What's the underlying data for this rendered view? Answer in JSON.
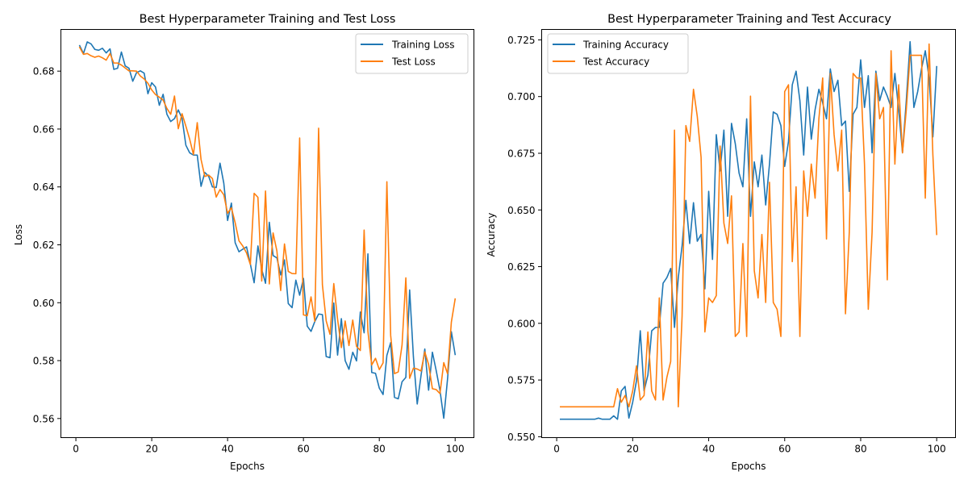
{
  "chart_data": [
    {
      "type": "line",
      "title": "Best Hyperparameter Training and Test Loss",
      "xlabel": "Epochs",
      "ylabel": "Loss",
      "xlim": [
        -3.95,
        104.95
      ],
      "ylim": [
        0.5534,
        0.6944
      ],
      "xticks": [
        0,
        20,
        40,
        60,
        80,
        100
      ],
      "yticks": [
        0.56,
        0.58,
        0.6,
        0.62,
        0.64,
        0.66,
        0.68
      ],
      "ytick_labels": [
        "0.56",
        "0.58",
        "0.60",
        "0.62",
        "0.64",
        "0.66",
        "0.68"
      ],
      "legend_position": "upper-right",
      "x": [
        1,
        2,
        3,
        4,
        5,
        6,
        7,
        8,
        9,
        10,
        11,
        12,
        13,
        14,
        15,
        16,
        17,
        18,
        19,
        20,
        21,
        22,
        23,
        24,
        25,
        26,
        27,
        28,
        29,
        30,
        31,
        32,
        33,
        34,
        35,
        36,
        37,
        38,
        39,
        40,
        41,
        42,
        43,
        44,
        45,
        46,
        47,
        48,
        49,
        50,
        51,
        52,
        53,
        54,
        55,
        56,
        57,
        58,
        59,
        60,
        61,
        62,
        63,
        64,
        65,
        66,
        67,
        68,
        69,
        70,
        71,
        72,
        73,
        74,
        75,
        76,
        77,
        78,
        79,
        80,
        81,
        82,
        83,
        84,
        85,
        86,
        87,
        88,
        89,
        90,
        91,
        92,
        93,
        94,
        95,
        96,
        97,
        98,
        99,
        100
      ],
      "series": [
        {
          "name": "Training Loss",
          "color": "#1f77b4",
          "values": [
            0.6888,
            0.6861,
            0.6901,
            0.6894,
            0.6875,
            0.6872,
            0.6879,
            0.6863,
            0.6877,
            0.6806,
            0.681,
            0.6866,
            0.6818,
            0.681,
            0.6765,
            0.6795,
            0.6801,
            0.6793,
            0.6722,
            0.676,
            0.6745,
            0.6682,
            0.672,
            0.6651,
            0.6626,
            0.6636,
            0.6666,
            0.6637,
            0.6544,
            0.6518,
            0.651,
            0.651,
            0.6402,
            0.645,
            0.6437,
            0.64,
            0.6398,
            0.6482,
            0.6413,
            0.6284,
            0.6344,
            0.6207,
            0.6176,
            0.6185,
            0.6193,
            0.6134,
            0.6069,
            0.6196,
            0.6115,
            0.6067,
            0.6278,
            0.6163,
            0.6155,
            0.6096,
            0.6148,
            0.5997,
            0.5983,
            0.6078,
            0.6026,
            0.6084,
            0.5919,
            0.5901,
            0.5935,
            0.5961,
            0.5959,
            0.5814,
            0.581,
            0.5999,
            0.5819,
            0.5945,
            0.58,
            0.577,
            0.5829,
            0.5799,
            0.5968,
            0.5896,
            0.6169,
            0.5759,
            0.5756,
            0.5705,
            0.5683,
            0.5818,
            0.5862,
            0.5673,
            0.5668,
            0.5727,
            0.5742,
            0.6044,
            0.5812,
            0.565,
            0.5748,
            0.584,
            0.5698,
            0.5829,
            0.5766,
            0.5697,
            0.5601,
            0.5737,
            0.59,
            0.5821
          ]
        },
        {
          "name": "Test Loss",
          "color": "#ff7f0e",
          "values": [
            0.6882,
            0.6858,
            0.6861,
            0.6853,
            0.6848,
            0.6852,
            0.6846,
            0.6838,
            0.6861,
            0.6828,
            0.6828,
            0.6821,
            0.6811,
            0.6801,
            0.6801,
            0.68,
            0.6783,
            0.6773,
            0.6758,
            0.6735,
            0.6719,
            0.671,
            0.67,
            0.6671,
            0.6651,
            0.6714,
            0.6601,
            0.6653,
            0.661,
            0.6565,
            0.6512,
            0.6622,
            0.6495,
            0.6436,
            0.6441,
            0.6429,
            0.6365,
            0.6391,
            0.6373,
            0.6309,
            0.6328,
            0.6276,
            0.6214,
            0.6196,
            0.6172,
            0.6132,
            0.6378,
            0.6364,
            0.6075,
            0.6386,
            0.6065,
            0.6241,
            0.6179,
            0.6042,
            0.6203,
            0.6108,
            0.6101,
            0.61,
            0.6569,
            0.5958,
            0.5955,
            0.602,
            0.5936,
            0.6603,
            0.6062,
            0.5937,
            0.5891,
            0.6066,
            0.5943,
            0.5845,
            0.5937,
            0.5852,
            0.594,
            0.5849,
            0.5835,
            0.6251,
            0.5901,
            0.5785,
            0.5808,
            0.5769,
            0.5792,
            0.6418,
            0.5887,
            0.5755,
            0.5761,
            0.5854,
            0.6086,
            0.5739,
            0.5774,
            0.5771,
            0.5764,
            0.583,
            0.5787,
            0.5703,
            0.57,
            0.5686,
            0.5793,
            0.5755,
            0.5933,
            0.6013
          ]
        }
      ]
    },
    {
      "type": "line",
      "title": "Best Hyperparameter Training and Test Accuracy",
      "xlabel": "Epochs",
      "ylabel": "Accuracy",
      "xlim": [
        -3.95,
        104.95
      ],
      "ylim": [
        0.5496,
        0.7296
      ],
      "xticks": [
        0,
        20,
        40,
        60,
        80,
        100
      ],
      "yticks": [
        0.55,
        0.575,
        0.6,
        0.625,
        0.65,
        0.675,
        0.7,
        0.725
      ],
      "ytick_labels": [
        "0.550",
        "0.575",
        "0.600",
        "0.625",
        "0.650",
        "0.675",
        "0.700",
        "0.725"
      ],
      "legend_position": "upper-left",
      "x": [
        1,
        2,
        3,
        4,
        5,
        6,
        7,
        8,
        9,
        10,
        11,
        12,
        13,
        14,
        15,
        16,
        17,
        18,
        19,
        20,
        21,
        22,
        23,
        24,
        25,
        26,
        27,
        28,
        29,
        30,
        31,
        32,
        33,
        34,
        35,
        36,
        37,
        38,
        39,
        40,
        41,
        42,
        43,
        44,
        45,
        46,
        47,
        48,
        49,
        50,
        51,
        52,
        53,
        54,
        55,
        56,
        57,
        58,
        59,
        60,
        61,
        62,
        63,
        64,
        65,
        66,
        67,
        68,
        69,
        70,
        71,
        72,
        73,
        74,
        75,
        76,
        77,
        78,
        79,
        80,
        81,
        82,
        83,
        84,
        85,
        86,
        87,
        88,
        89,
        90,
        91,
        92,
        93,
        94,
        95,
        96,
        97,
        98,
        99,
        100
      ],
      "series": [
        {
          "name": "Training Accuracy",
          "color": "#1f77b4",
          "values": [
            0.5577,
            0.5577,
            0.5577,
            0.5577,
            0.5577,
            0.5577,
            0.5577,
            0.5577,
            0.5577,
            0.5577,
            0.5582,
            0.5577,
            0.5577,
            0.5577,
            0.5592,
            0.5577,
            0.5702,
            0.5722,
            0.5582,
            0.5652,
            0.5747,
            0.5967,
            0.5702,
            0.5772,
            0.5967,
            0.5982,
            0.5982,
            0.6177,
            0.6202,
            0.6242,
            0.5982,
            0.6202,
            0.6342,
            0.6542,
            0.6352,
            0.6532,
            0.6362,
            0.6392,
            0.6152,
            0.6582,
            0.6282,
            0.6832,
            0.6672,
            0.6852,
            0.6472,
            0.6882,
            0.6792,
            0.6662,
            0.6602,
            0.6902,
            0.6472,
            0.6712,
            0.6602,
            0.6742,
            0.6522,
            0.6702,
            0.6932,
            0.6922,
            0.6872,
            0.6692,
            0.6802,
            0.7052,
            0.7112,
            0.6982,
            0.6742,
            0.7042,
            0.6812,
            0.6942,
            0.7032,
            0.6972,
            0.6902,
            0.7122,
            0.7022,
            0.7072,
            0.6872,
            0.6892,
            0.6582,
            0.6922,
            0.6952,
            0.7162,
            0.6952,
            0.7092,
            0.6752,
            0.7112,
            0.6982,
            0.7042,
            0.7002,
            0.6952,
            0.7102,
            0.6942,
            0.6752,
            0.6982,
            0.7242,
            0.6952,
            0.7022,
            0.7122,
            0.7202,
            0.7082,
            0.6822,
            0.7132
          ]
        },
        {
          "name": "Test Accuracy",
          "color": "#ff7f0e",
          "values": [
            0.5632,
            0.5632,
            0.5632,
            0.5632,
            0.5632,
            0.5632,
            0.5632,
            0.5632,
            0.5632,
            0.5632,
            0.5632,
            0.5632,
            0.5632,
            0.5632,
            0.5632,
            0.5712,
            0.5652,
            0.5682,
            0.5632,
            0.5702,
            0.5812,
            0.5662,
            0.5682,
            0.5962,
            0.5702,
            0.5662,
            0.6112,
            0.5662,
            0.5762,
            0.5832,
            0.6852,
            0.5632,
            0.6032,
            0.6872,
            0.6802,
            0.7032,
            0.6912,
            0.6732,
            0.5962,
            0.6112,
            0.6092,
            0.6122,
            0.6782,
            0.6442,
            0.6352,
            0.6562,
            0.5942,
            0.5962,
            0.6352,
            0.5942,
            0.7002,
            0.6232,
            0.6112,
            0.6392,
            0.6092,
            0.6622,
            0.6092,
            0.6062,
            0.5942,
            0.7022,
            0.7052,
            0.6272,
            0.6602,
            0.5942,
            0.6672,
            0.6472,
            0.6702,
            0.6552,
            0.6902,
            0.7082,
            0.6372,
            0.7102,
            0.6832,
            0.6672,
            0.6852,
            0.6042,
            0.6402,
            0.7102,
            0.7082,
            0.7082,
            0.6702,
            0.6062,
            0.6402,
            0.7102,
            0.6902,
            0.6952,
            0.6192,
            0.7202,
            0.6702,
            0.7052,
            0.6752,
            0.6942,
            0.7182,
            0.7182,
            0.7182,
            0.7182,
            0.6552,
            0.7232,
            0.6742,
            0.6392
          ]
        }
      ]
    }
  ]
}
